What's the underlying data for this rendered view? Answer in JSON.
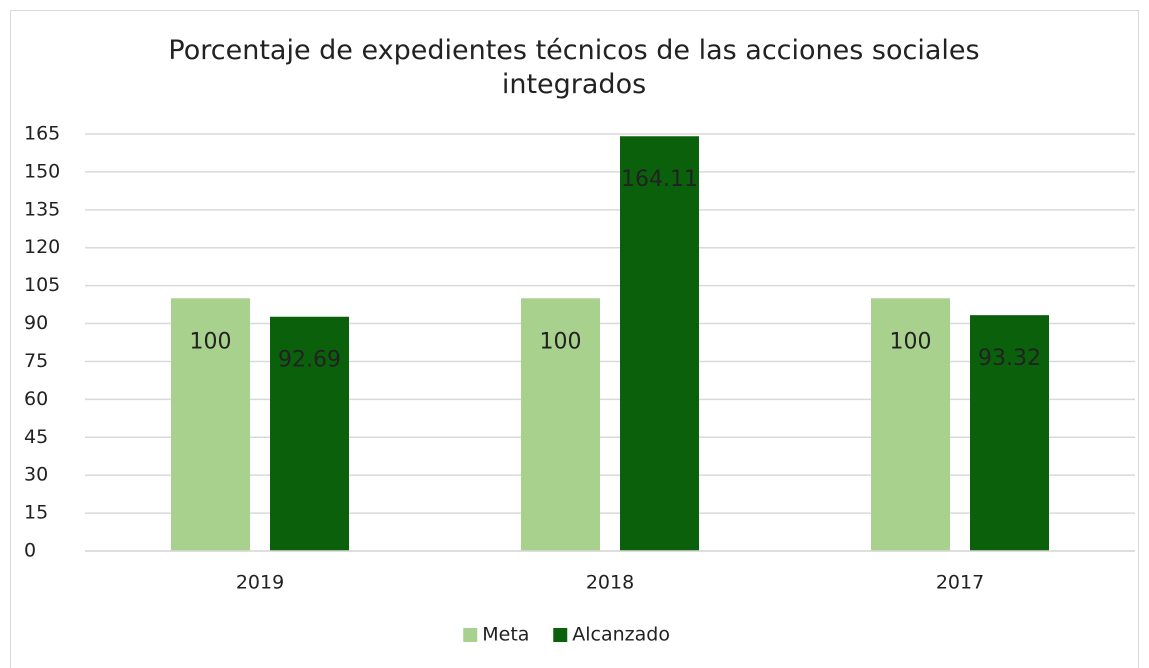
{
  "chart_data": {
    "type": "bar",
    "title": "Porcentaje de expedientes técnicos de las acciones sociales integrados",
    "categories": [
      "2019",
      "2018",
      "2017"
    ],
    "series": [
      {
        "name": "Meta",
        "color": "#a9d18e",
        "values": [
          100,
          100,
          100
        ]
      },
      {
        "name": "Alcanzado",
        "color": "#0b610b",
        "values": [
          92.69,
          164.11,
          93.32
        ]
      }
    ],
    "ylim": [
      0,
      165
    ],
    "yticks": [
      0,
      15,
      30,
      45,
      60,
      75,
      90,
      105,
      120,
      135,
      150,
      165
    ],
    "grid": true,
    "legend": "bottom",
    "data_labels": true
  }
}
